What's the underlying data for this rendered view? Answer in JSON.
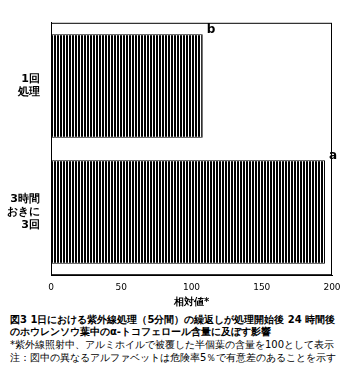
{
  "chart_data": {
    "type": "bar",
    "orientation": "horizontal",
    "title": "図3 1日における紫外線処理（5分間）の繰返しが処理開始後 24 時間後のホウレンソウ葉中のα-トコフェロール含量に及ぼす影響",
    "notes": [
      "*紫外線照射中、アルミホイルで被覆した半個葉の含量を100として表示",
      "注：図中の異なるアルファベットは危険率5％で有意差のあることを示す"
    ],
    "categories": [
      "1回\n処理",
      "3時間\nおきに\n3回"
    ],
    "values": [
      108,
      195
    ],
    "annotations": [
      "b",
      "a"
    ],
    "x_label": "相対値*",
    "color": "#000000",
    "xlim": [
      0,
      200
    ],
    "xticks": [
      0,
      50,
      100,
      150,
      200
    ],
    "grid": false
  }
}
